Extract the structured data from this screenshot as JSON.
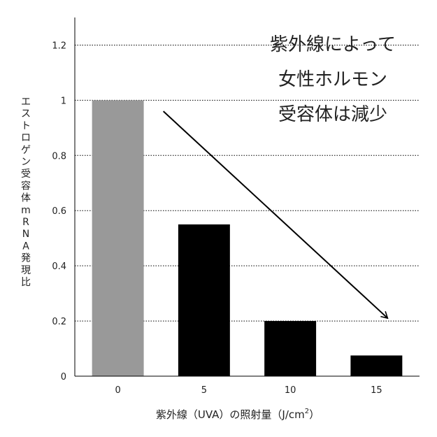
{
  "chart_data": {
    "type": "bar",
    "categories": [
      "0",
      "5",
      "10",
      "15"
    ],
    "values": [
      1.0,
      0.55,
      0.2,
      0.075
    ],
    "bar_colors": [
      "#999999",
      "#000000",
      "#000000",
      "#000000"
    ],
    "ylim": [
      0,
      1.3
    ],
    "yticks": [
      0,
      0.2,
      0.4,
      0.6,
      0.8,
      1,
      1.2
    ],
    "ytick_labels": [
      "0",
      "0.2",
      "0.4",
      "0.6",
      "0.8",
      "1",
      "1.2"
    ],
    "gridlines": "dotted horizontal",
    "ylabel_chars": [
      "エ",
      "ス",
      "ト",
      "ロ",
      "ゲ",
      "ン",
      "受",
      "容",
      "体",
      "m",
      "R",
      "N",
      "A",
      "発",
      "現",
      "比"
    ],
    "xlabel_main": "紫外線（UVA）の照射量（J/cm",
    "xlabel_sup": "2",
    "xlabel_end": "）",
    "annotation_lines": [
      "紫外線によって",
      "女性ホルモン",
      "受容体は減少"
    ],
    "trend_arrow": {
      "from": {
        "x": "0",
        "y": 0.96
      },
      "to": {
        "x": "15",
        "y": 0.2
      }
    }
  }
}
